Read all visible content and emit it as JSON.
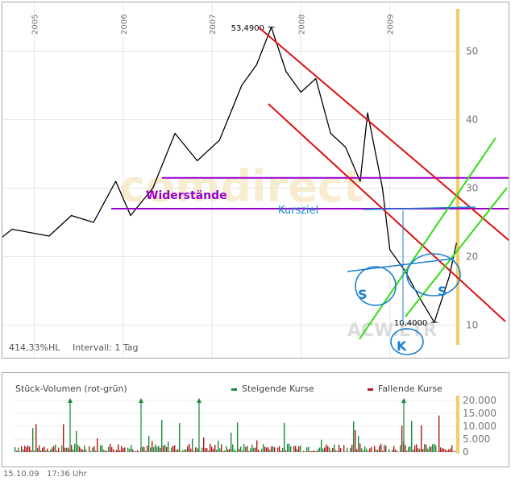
{
  "chart_data": [
    {
      "type": "line",
      "x_ticks": [
        "2005",
        "2006",
        "2007",
        "2008",
        "2009"
      ],
      "y_ticks": [
        "10",
        "20",
        "30",
        "40",
        "50"
      ],
      "ylim": [
        6.5,
        56
      ],
      "grid": true,
      "price_high_label": "53,4900",
      "price_low_label": "10,4000",
      "price_series": {
        "x": [
          "2004-06",
          "2004-10",
          "2005-03",
          "2005-06",
          "2005-09",
          "2005-12",
          "2006-02",
          "2006-05",
          "2006-08",
          "2006-11",
          "2007-02",
          "2007-05",
          "2007-07",
          "2007-09",
          "2007-11",
          "2008-01",
          "2008-03",
          "2008-05",
          "2008-07",
          "2008-09",
          "2008-10",
          "2008-12",
          "2009-01",
          "2009-03",
          "2009-05",
          "2009-07",
          "2009-09",
          "2009-10"
        ],
        "y": [
          20.5,
          24,
          23,
          26,
          25,
          31,
          26,
          30,
          38,
          34,
          37,
          45,
          48,
          53.5,
          47,
          44,
          46,
          38,
          36,
          31,
          41,
          30,
          21,
          18,
          14,
          10.4,
          17,
          22
        ]
      },
      "annotations": {
        "resistance_label": "Widerstände",
        "target_label": "Kursziel",
        "pattern_labels": [
          "S",
          "S",
          "K"
        ],
        "watermark": "comdirect",
        "symbol": "ACW.ETR"
      },
      "colors": {
        "price": "#000000",
        "downtrend": "#dd1111",
        "uptrend": "#33dd11",
        "resistance": "#9900cc",
        "target": "#1a7fd0",
        "now_marker": "#f5cc66"
      },
      "footer_left": "414,33%HL",
      "footer_interval": "Intervall: 1 Tag"
    },
    {
      "type": "bar",
      "title": "Stück-Volumen (rot-grün)",
      "legend": [
        "Steigende Kurse",
        "Fallende Kurse"
      ],
      "y_ticks": [
        "20.000",
        "15.000",
        "10.000",
        "5.000",
        "0"
      ],
      "ylim": [
        0,
        20000
      ],
      "colors": {
        "up": "#1a8a3a",
        "down": "#b01818"
      }
    }
  ],
  "timestamp": {
    "date": "15.10.09",
    "time": "17:36 Uhr"
  }
}
